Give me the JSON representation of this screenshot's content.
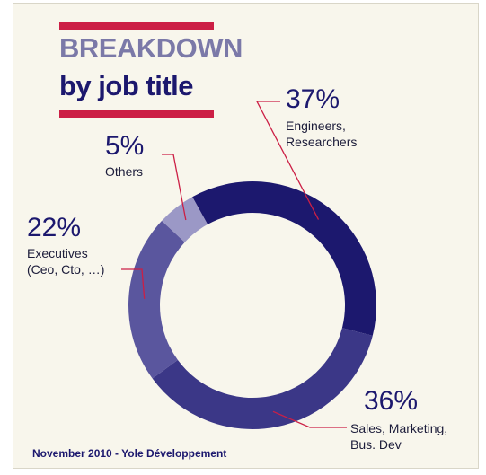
{
  "header": {
    "title_line1": "BREAKDOWN",
    "title_line2": "by job title"
  },
  "chart_data": {
    "type": "pie",
    "title": "BREAKDOWN by job title",
    "slices": [
      {
        "label": "Engineers, Researchers",
        "value": 37,
        "value_label": "37%",
        "label_lines": [
          "Engineers,",
          "Researchers"
        ],
        "color": "#1c186e"
      },
      {
        "label": "Sales, Marketing, Bus. Dev",
        "value": 36,
        "value_label": "36%",
        "label_lines": [
          "Sales, Marketing,",
          "Bus. Dev"
        ],
        "color": "#3b3787"
      },
      {
        "label": "Executives (Ceo, Cto, …)",
        "value": 22,
        "value_label": "22%",
        "label_lines": [
          "Executives",
          "(Ceo, Cto, …)"
        ],
        "color": "#5a569e"
      },
      {
        "label": "Others",
        "value": 5,
        "value_label": "5%",
        "label_lines": [
          "Others"
        ],
        "color": "#9b98c6"
      }
    ]
  },
  "colors": {
    "accent_bar": "#cc1f45",
    "leader_line": "#cc1f45",
    "background": "#f8f6ec"
  },
  "footer": {
    "source": "November 2010 - Yole Développement"
  }
}
